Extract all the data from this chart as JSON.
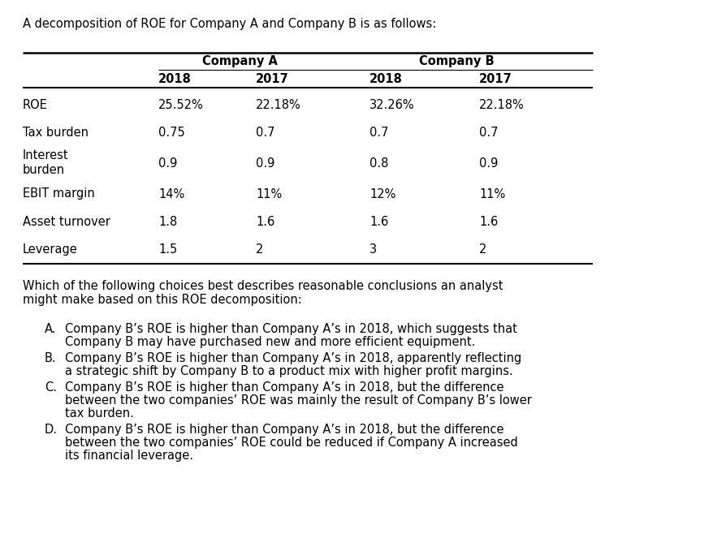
{
  "title": "A decomposition of ROE for Company A and Company B is as follows:",
  "rows": [
    [
      "ROE",
      "25.52%",
      "22.18%",
      "32.26%",
      "22.18%"
    ],
    [
      "Tax burden",
      "0.75",
      "0.7",
      "0.7",
      "0.7"
    ],
    [
      "Interest\nburden",
      "0.9",
      "0.9",
      "0.8",
      "0.9"
    ],
    [
      "EBIT margin",
      "14%",
      "11%",
      "12%",
      "11%"
    ],
    [
      "Asset turnover",
      "1.8",
      "1.6",
      "1.6",
      "1.6"
    ],
    [
      "Leverage",
      "1.5",
      "2",
      "3",
      "2"
    ]
  ],
  "question": "Which of the following choices best describes reasonable conclusions an analyst might make based on this ROE decomposition:",
  "choices": [
    [
      "A.",
      "Company B’s ROE is higher than Company A’s in 2018, which suggests that Company B may have purchased new and more efficient equipment."
    ],
    [
      "B.",
      "Company B’s ROE is higher than Company A’s in 2018, apparently reflecting a strategic shift by Company B to a product mix with higher profit margins."
    ],
    [
      "C.",
      "Company B’s ROE is higher than Company A’s in 2018, but the difference between the two companies’ ROE was mainly the result of Company B’s lower tax burden."
    ],
    [
      "D.",
      "Company B’s ROE is higher than Company A’s in 2018, but the difference between the two companies’ ROE could be reduced if Company A increased its financial leverage."
    ]
  ],
  "background_color": "#ffffff",
  "text_color": "#000000",
  "font_size": 10.5,
  "title_font_size": 10.5
}
